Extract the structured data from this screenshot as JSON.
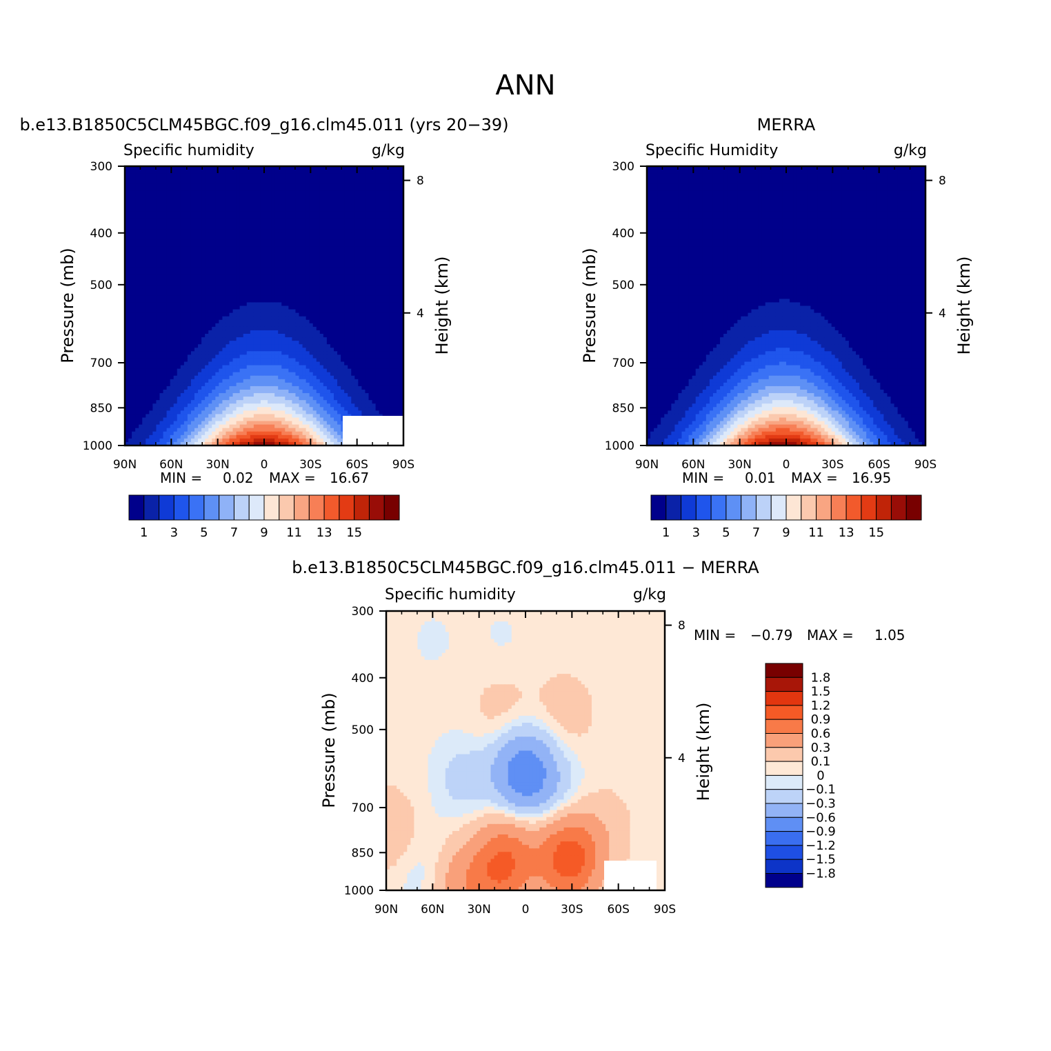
{
  "figure": {
    "title": "ANN"
  },
  "chart_data": [
    {
      "type": "heatmap",
      "panel": "model",
      "title": "b.e13.B1850C5CLM45BGC.f09_g16.clm45.011 (yrs 20−39)",
      "left_label": "Specific humidity",
      "right_label": "g/kg",
      "ylabel": "Pressure (mb)",
      "y2label": "Height (km)",
      "x_tick_labels": [
        "90N",
        "60N",
        "30N",
        "0",
        "30S",
        "60S",
        "90S"
      ],
      "y_tick_labels": [
        "300",
        "400",
        "500",
        "700",
        "850",
        "1000"
      ],
      "y2_tick_labels": [
        "8",
        "4"
      ],
      "xlim": [
        90,
        -90
      ],
      "ylim": [
        1000,
        300
      ],
      "stats": {
        "min_label": "MIN =",
        "min": "0.02",
        "max_label": "MAX =",
        "max": "16.67"
      },
      "legend_position": "bottom",
      "colorbar": {
        "colors": [
          "#00008b",
          "#0a22a8",
          "#0f3ad6",
          "#1f55ec",
          "#3a72f5",
          "#5e90f5",
          "#8fb2f7",
          "#bcd2f8",
          "#dde9fa",
          "#fde6d5",
          "#fbc9ae",
          "#f9a582",
          "#f77f56",
          "#f25a2c",
          "#e33b14",
          "#c02408",
          "#990d07",
          "#780000"
        ],
        "tick_labels": [
          "1",
          "3",
          "5",
          "7",
          "9",
          "11",
          "13",
          "15"
        ]
      },
      "field_peak_lat": 0,
      "field_peak_value": 16.67,
      "field_top_value": 0.02
    },
    {
      "type": "heatmap",
      "panel": "obs",
      "title": "MERRA",
      "left_label": "Specific Humidity",
      "right_label": "g/kg",
      "ylabel": "Pressure (mb)",
      "y2label": "Height (km)",
      "x_tick_labels": [
        "90N",
        "60N",
        "30N",
        "0",
        "30S",
        "60S",
        "90S"
      ],
      "y_tick_labels": [
        "300",
        "400",
        "500",
        "700",
        "850",
        "1000"
      ],
      "y2_tick_labels": [
        "8",
        "4"
      ],
      "xlim": [
        90,
        -90
      ],
      "ylim": [
        1000,
        300
      ],
      "stats": {
        "min_label": "MIN =",
        "min": "0.01",
        "max_label": "MAX =",
        "max": "16.95"
      },
      "legend_position": "bottom",
      "colorbar": {
        "colors": [
          "#00008b",
          "#0a22a8",
          "#0f3ad6",
          "#1f55ec",
          "#3a72f5",
          "#5e90f5",
          "#8fb2f7",
          "#bcd2f8",
          "#dde9fa",
          "#fde6d5",
          "#fbc9ae",
          "#f9a582",
          "#f77f56",
          "#f25a2c",
          "#e33b14",
          "#c02408",
          "#990d07",
          "#780000"
        ],
        "tick_labels": [
          "1",
          "3",
          "5",
          "7",
          "9",
          "11",
          "13",
          "15"
        ]
      },
      "field_peak_lat": 2,
      "field_peak_value": 16.95,
      "field_top_value": 0.01
    },
    {
      "type": "heatmap",
      "panel": "difference",
      "title": "b.e13.B1850C5CLM45BGC.f09_g16.clm45.011 − MERRA",
      "left_label": "Specific humidity",
      "right_label": "g/kg",
      "ylabel": "Pressure (mb)",
      "y2label": "Height (km)",
      "x_tick_labels": [
        "90N",
        "60N",
        "30N",
        "0",
        "30S",
        "60S",
        "90S"
      ],
      "y_tick_labels": [
        "300",
        "400",
        "500",
        "700",
        "850",
        "1000"
      ],
      "y2_tick_labels": [
        "8",
        "4"
      ],
      "xlim": [
        90,
        -90
      ],
      "ylim": [
        1000,
        300
      ],
      "stats": {
        "min_label": "MIN =",
        "min": "−0.79",
        "max_label": "MAX =",
        "max": "1.05"
      },
      "legend_position": "right",
      "colorbar": {
        "colors": [
          "#780000",
          "#a81608",
          "#e2360f",
          "#f55a26",
          "#f87a48",
          "#f9a07a",
          "#fcc9ad",
          "#fee8d6",
          "#dceaf9",
          "#bdd3f8",
          "#92b3f6",
          "#5f8ff4",
          "#3a6ef0",
          "#1e4fe4",
          "#0d34c8",
          "#00008b"
        ],
        "tick_labels": [
          "1.8",
          "1.5",
          "1.2",
          "0.9",
          "0.6",
          "0.3",
          "0.1",
          "0",
          "−0.1",
          "−0.3",
          "−0.6",
          "−0.9",
          "−1.2",
          "−1.5",
          "−1.8"
        ]
      },
      "anomalies": [
        {
          "lat": 2,
          "p": 600,
          "value": -0.79
        },
        {
          "lat": -28,
          "p": 870,
          "value": 1.05
        },
        {
          "lat": 12,
          "p": 870,
          "value": 0.7
        },
        {
          "lat": 15,
          "p": 470,
          "value": 0.15
        },
        {
          "lat": -25,
          "p": 470,
          "value": 0.15
        },
        {
          "lat": 40,
          "p": 620,
          "value": -0.2
        },
        {
          "lat": -12,
          "p": 620,
          "value": -0.2
        },
        {
          "lat": -30,
          "p": 700,
          "value": -0.1
        },
        {
          "lat": 20,
          "p": 960,
          "value": 0.3
        },
        {
          "lat": 42,
          "p": 980,
          "value": 0.4
        },
        {
          "lat": 65,
          "p": 930,
          "value": -0.15
        },
        {
          "lat": -48,
          "p": 760,
          "value": 0.15
        },
        {
          "lat": 88,
          "p": 780,
          "value": 0.2
        },
        {
          "lat": 60,
          "p": 340,
          "value": -0.05
        },
        {
          "lat": 15,
          "p": 340,
          "value": -0.05
        }
      ]
    }
  ]
}
